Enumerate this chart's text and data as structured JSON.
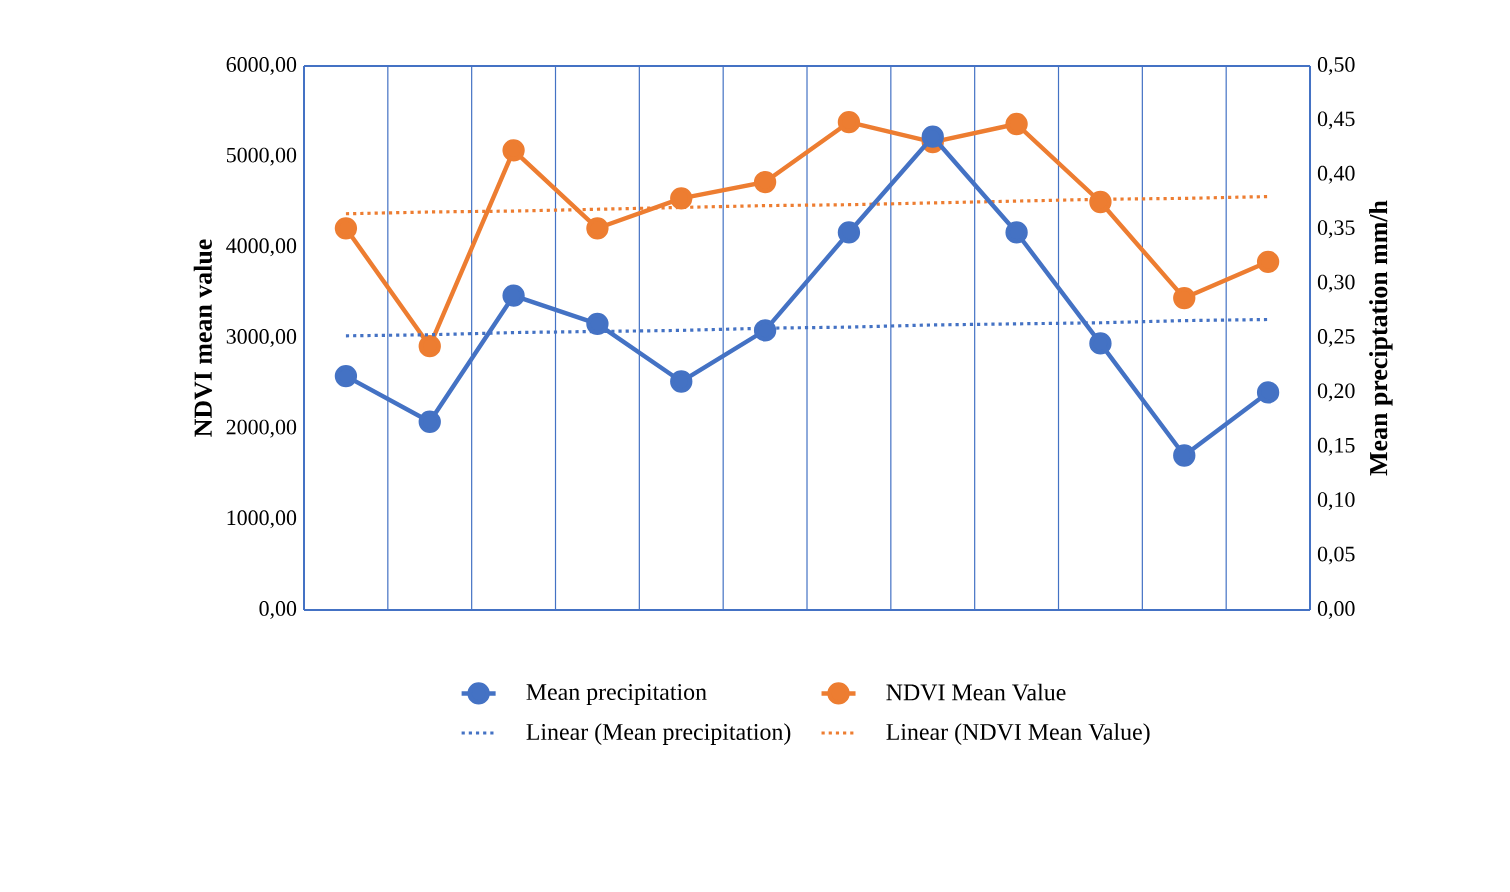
{
  "chart_data": {
    "type": "line",
    "ylabel": "NDVI mean value",
    "y2label": "Mean preciptation mm/h",
    "categories": [
      null,
      null,
      null,
      null,
      null,
      null,
      null,
      null,
      null,
      null,
      null,
      null
    ],
    "ylim": [
      0,
      6000
    ],
    "yticks": [
      {
        "value": 0,
        "label": "0,00"
      },
      {
        "value": 1000,
        "label": "1000,00"
      },
      {
        "value": 2000,
        "label": "2000,00"
      },
      {
        "value": 3000,
        "label": "3000,00"
      },
      {
        "value": 4000,
        "label": "4000,00"
      },
      {
        "value": 5000,
        "label": "5000,00"
      },
      {
        "value": 6000,
        "label": "6000,00"
      }
    ],
    "y2lim": [
      0,
      0.5
    ],
    "y2ticks": [
      {
        "value": 0,
        "label": "0,00"
      },
      {
        "value": 0.05,
        "label": "0,05"
      },
      {
        "value": 0.1,
        "label": "0,10"
      },
      {
        "value": 0.15,
        "label": "0,15"
      },
      {
        "value": 0.2,
        "label": "0,20"
      },
      {
        "value": 0.25,
        "label": "0,25"
      },
      {
        "value": 0.3,
        "label": "0,30"
      },
      {
        "value": 0.35,
        "label": "0,35"
      },
      {
        "value": 0.4,
        "label": "0,40"
      },
      {
        "value": 0.45,
        "label": "0,45"
      },
      {
        "value": 0.5,
        "label": "0,50"
      }
    ],
    "grid": "x",
    "legend": "bottom",
    "series": [
      {
        "name": "Mean precipitation",
        "color": "#4472c4",
        "axis": "y2",
        "marker": "circle",
        "line_style": "solid",
        "values": [
          0.215,
          0.173,
          0.289,
          0.263,
          0.21,
          0.257,
          0.347,
          0.435,
          0.347,
          0.245,
          0.142,
          0.2
        ]
      },
      {
        "name": "NDVI Mean Value",
        "color": "#ed7d31",
        "axis": "y",
        "marker": "circle",
        "line_style": "solid",
        "values": [
          4210,
          2910,
          5070,
          4210,
          4540,
          4720,
          5380,
          5160,
          5360,
          4500,
          3440,
          3840
        ]
      },
      {
        "name": "Linear (Mean precipitation)",
        "color": "#4472c4",
        "axis": "y2",
        "type": "line",
        "marker": "none",
        "line_style": "dotted",
        "values": [
          0.252,
          0.253,
          0.255,
          0.256,
          0.257,
          0.259,
          0.26,
          0.262,
          0.263,
          0.264,
          0.266,
          0.267
        ]
      },
      {
        "name": "Linear (NDVI Mean Value)",
        "color": "#ed7d31",
        "axis": "y",
        "type": "line",
        "marker": "none",
        "line_style": "dotted",
        "values": [
          4370,
          4390,
          4400,
          4420,
          4440,
          4460,
          4470,
          4490,
          4510,
          4530,
          4540,
          4560
        ]
      }
    ]
  }
}
